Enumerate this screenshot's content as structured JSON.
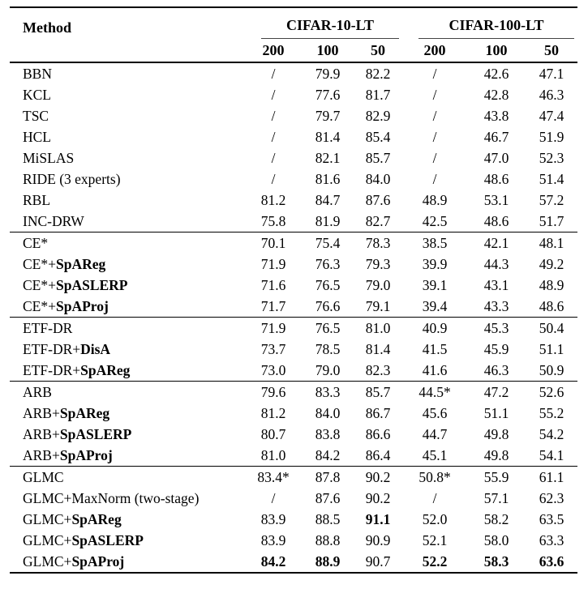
{
  "colors": {
    "background": "#ffffff",
    "text": "#000000",
    "heavy_rule": "#000000",
    "cmidrule": "#444444"
  },
  "table": {
    "header": {
      "method_label": "Method",
      "groups": [
        {
          "label": "CIFAR-10-LT",
          "subcols": [
            "200",
            "100",
            "50"
          ]
        },
        {
          "label": "CIFAR-100-LT",
          "subcols": [
            "200",
            "100",
            "50"
          ]
        }
      ]
    },
    "sections": [
      {
        "rows": [
          {
            "m": "BBN",
            "mb": "",
            "v": [
              "/",
              "79.9",
              "82.2",
              "/",
              "42.6",
              "47.1"
            ],
            "b": []
          },
          {
            "m": "KCL",
            "mb": "",
            "v": [
              "/",
              "77.6",
              "81.7",
              "/",
              "42.8",
              "46.3"
            ],
            "b": []
          },
          {
            "m": "TSC",
            "mb": "",
            "v": [
              "/",
              "79.7",
              "82.9",
              "/",
              "43.8",
              "47.4"
            ],
            "b": []
          },
          {
            "m": "HCL",
            "mb": "",
            "v": [
              "/",
              "81.4",
              "85.4",
              "/",
              "46.7",
              "51.9"
            ],
            "b": []
          },
          {
            "m": "MiSLAS",
            "mb": "",
            "v": [
              "/",
              "82.1",
              "85.7",
              "/",
              "47.0",
              "52.3"
            ],
            "b": []
          },
          {
            "m": "RIDE (3 experts)",
            "mb": "",
            "v": [
              "/",
              "81.6",
              "84.0",
              "/",
              "48.6",
              "51.4"
            ],
            "b": []
          },
          {
            "m": "RBL",
            "mb": "",
            "v": [
              "81.2",
              "84.7",
              "87.6",
              "48.9",
              "53.1",
              "57.2"
            ],
            "b": []
          },
          {
            "m": "INC-DRW",
            "mb": "",
            "v": [
              "75.8",
              "81.9",
              "82.7",
              "42.5",
              "48.6",
              "51.7"
            ],
            "b": []
          }
        ]
      },
      {
        "rows": [
          {
            "m": "CE*",
            "mb": "",
            "v": [
              "70.1",
              "75.4",
              "78.3",
              "38.5",
              "42.1",
              "48.1"
            ],
            "b": []
          },
          {
            "m": "CE*+",
            "mb": "SpAReg",
            "v": [
              "71.9",
              "76.3",
              "79.3",
              "39.9",
              "44.3",
              "49.2"
            ],
            "b": []
          },
          {
            "m": "CE*+",
            "mb": "SpASLERP",
            "v": [
              "71.6",
              "76.5",
              "79.0",
              "39.1",
              "43.1",
              "48.9"
            ],
            "b": []
          },
          {
            "m": "CE*+",
            "mb": "SpAProj",
            "v": [
              "71.7",
              "76.6",
              "79.1",
              "39.4",
              "43.3",
              "48.6"
            ],
            "b": []
          }
        ]
      },
      {
        "rows": [
          {
            "m": "ETF-DR",
            "mb": "",
            "v": [
              "71.9",
              "76.5",
              "81.0",
              "40.9",
              "45.3",
              "50.4"
            ],
            "b": []
          },
          {
            "m": "ETF-DR+",
            "mb": "DisA",
            "v": [
              "73.7",
              "78.5",
              "81.4",
              "41.5",
              "45.9",
              "51.1"
            ],
            "b": []
          },
          {
            "m": "ETF-DR+",
            "mb": "SpAReg",
            "v": [
              "73.0",
              "79.0",
              "82.3",
              "41.6",
              "46.3",
              "50.9"
            ],
            "b": []
          }
        ]
      },
      {
        "rows": [
          {
            "m": "ARB",
            "mb": "",
            "v": [
              "79.6",
              "83.3",
              "85.7",
              "44.5*",
              "47.2",
              "52.6"
            ],
            "b": []
          },
          {
            "m": "ARB+",
            "mb": "SpAReg",
            "v": [
              "81.2",
              "84.0",
              "86.7",
              "45.6",
              "51.1",
              "55.2"
            ],
            "b": []
          },
          {
            "m": "ARB+",
            "mb": "SpASLERP",
            "v": [
              "80.7",
              "83.8",
              "86.6",
              "44.7",
              "49.8",
              "54.2"
            ],
            "b": []
          },
          {
            "m": "ARB+",
            "mb": "SpAProj",
            "v": [
              "81.0",
              "84.2",
              "86.4",
              "45.1",
              "49.8",
              "54.1"
            ],
            "b": []
          }
        ]
      },
      {
        "rows": [
          {
            "m": "GLMC",
            "mb": "",
            "v": [
              "83.4*",
              "87.8",
              "90.2",
              "50.8*",
              "55.9",
              "61.1"
            ],
            "b": []
          },
          {
            "m": "GLMC+MaxNorm (two-stage)",
            "mb": "",
            "v": [
              "/",
              "87.6",
              "90.2",
              "/",
              "57.1",
              "62.3"
            ],
            "b": []
          },
          {
            "m": "GLMC+",
            "mb": "SpAReg",
            "v": [
              "83.9",
              "88.5",
              "91.1",
              "52.0",
              "58.2",
              "63.5"
            ],
            "b": [
              2
            ]
          },
          {
            "m": "GLMC+",
            "mb": "SpASLERP",
            "v": [
              "83.9",
              "88.8",
              "90.9",
              "52.1",
              "58.0",
              "63.3"
            ],
            "b": []
          },
          {
            "m": "GLMC+",
            "mb": "SpAProj",
            "v": [
              "84.2",
              "88.9",
              "90.7",
              "52.2",
              "58.3",
              "63.6"
            ],
            "b": [
              0,
              1,
              3,
              4,
              5
            ]
          }
        ]
      }
    ]
  }
}
